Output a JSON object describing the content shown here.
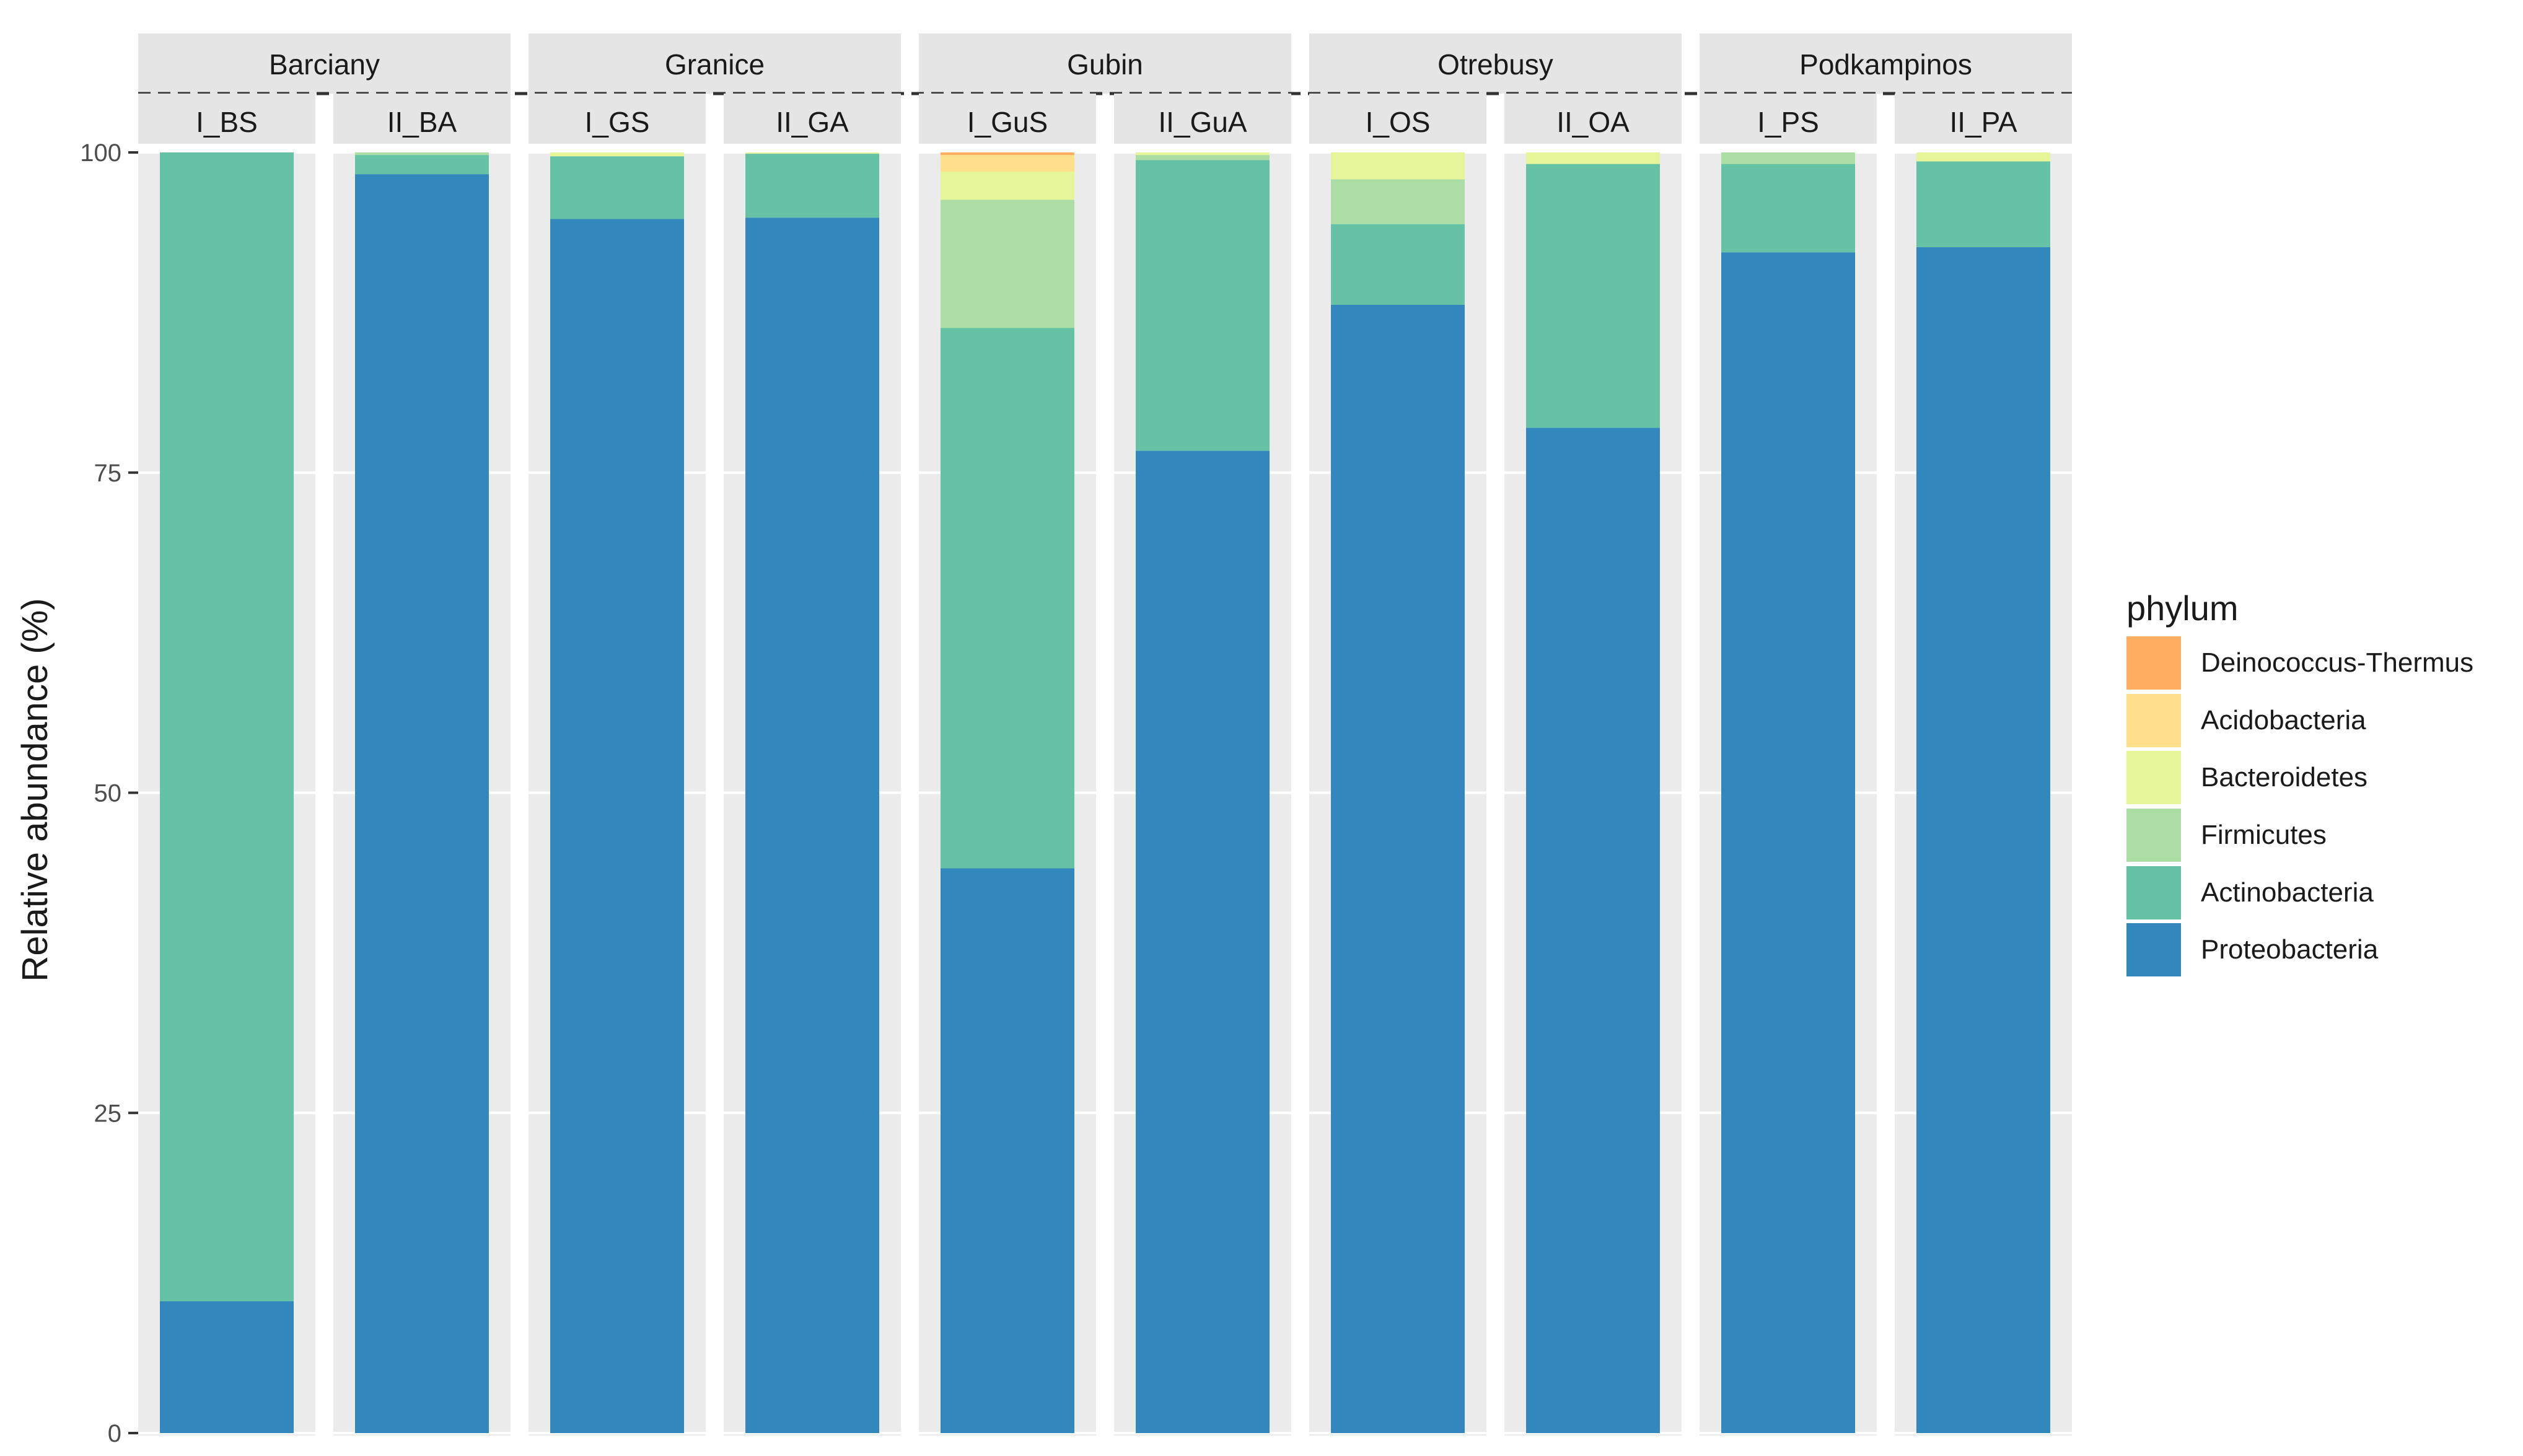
{
  "chart_data": {
    "type": "bar",
    "stacked": true,
    "ylabel": "Relative abundance (%)",
    "ylim": [
      0,
      100
    ],
    "yticks": [
      0,
      25,
      50,
      75,
      100
    ],
    "legend_title": "phylum",
    "legend_position": "right",
    "phyla": [
      "Deinococcus-Thermus",
      "Acidobacteria",
      "Bacteroidetes",
      "Firmicutes",
      "Actinobacteria",
      "Proteobacteria"
    ],
    "colors": {
      "Deinococcus-Thermus": "#FDAE61",
      "Acidobacteria": "#FEE08B",
      "Bacteroidetes": "#E6F598",
      "Firmicutes": "#ABDDA4",
      "Actinobacteria": "#66C2A5",
      "Proteobacteria": "#3288BD"
    },
    "sites": [
      "Barciany",
      "Granice",
      "Gubin",
      "Otrebusy",
      "Podkampinos"
    ],
    "samples": [
      {
        "site": "Barciany",
        "name": "I_BS",
        "values": {
          "Proteobacteria": 10.3,
          "Actinobacteria": 89.7
        }
      },
      {
        "site": "Barciany",
        "name": "II_BA",
        "values": {
          "Proteobacteria": 98.3,
          "Actinobacteria": 1.5,
          "Firmicutes": 0.2
        }
      },
      {
        "site": "Granice",
        "name": "I_GS",
        "values": {
          "Proteobacteria": 94.8,
          "Actinobacteria": 4.9,
          "Bacteroidetes": 0.3
        }
      },
      {
        "site": "Granice",
        "name": "II_GA",
        "values": {
          "Proteobacteria": 94.9,
          "Actinobacteria": 5.0,
          "Bacteroidetes": 0.1
        }
      },
      {
        "site": "Gubin",
        "name": "I_GuS",
        "values": {
          "Proteobacteria": 44.1,
          "Actinobacteria": 42.2,
          "Firmicutes": 10.0,
          "Bacteroidetes": 2.2,
          "Acidobacteria": 1.3,
          "Deinococcus-Thermus": 0.2
        }
      },
      {
        "site": "Gubin",
        "name": "II_GuA",
        "values": {
          "Proteobacteria": 76.7,
          "Actinobacteria": 22.7,
          "Firmicutes": 0.4,
          "Bacteroidetes": 0.2
        }
      },
      {
        "site": "Otrebusy",
        "name": "I_OS",
        "values": {
          "Proteobacteria": 88.1,
          "Actinobacteria": 6.3,
          "Firmicutes": 3.5,
          "Bacteroidetes": 2.1
        }
      },
      {
        "site": "Otrebusy",
        "name": "II_OA",
        "values": {
          "Proteobacteria": 78.5,
          "Actinobacteria": 20.6,
          "Bacteroidetes": 0.9
        }
      },
      {
        "site": "Podkampinos",
        "name": "I_PS",
        "values": {
          "Proteobacteria": 92.2,
          "Actinobacteria": 6.9,
          "Firmicutes": 0.9
        }
      },
      {
        "site": "Podkampinos",
        "name": "II_PA",
        "values": {
          "Proteobacteria": 92.6,
          "Actinobacteria": 6.7,
          "Bacteroidetes": 0.7
        }
      }
    ]
  }
}
